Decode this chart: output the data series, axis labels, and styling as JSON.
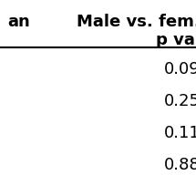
{
  "header_row1_left": "an",
  "header_row1_right": "Male vs. fem.",
  "header_row2_right": "p val",
  "values": [
    "0.09",
    "0.25",
    "0.11",
    "0.88"
  ],
  "bg_color": "#ffffff",
  "text_color": "#000000",
  "header_fontsize": 13,
  "value_fontsize": 13,
  "line_color": "#000000",
  "line_linewidth": 1.5
}
